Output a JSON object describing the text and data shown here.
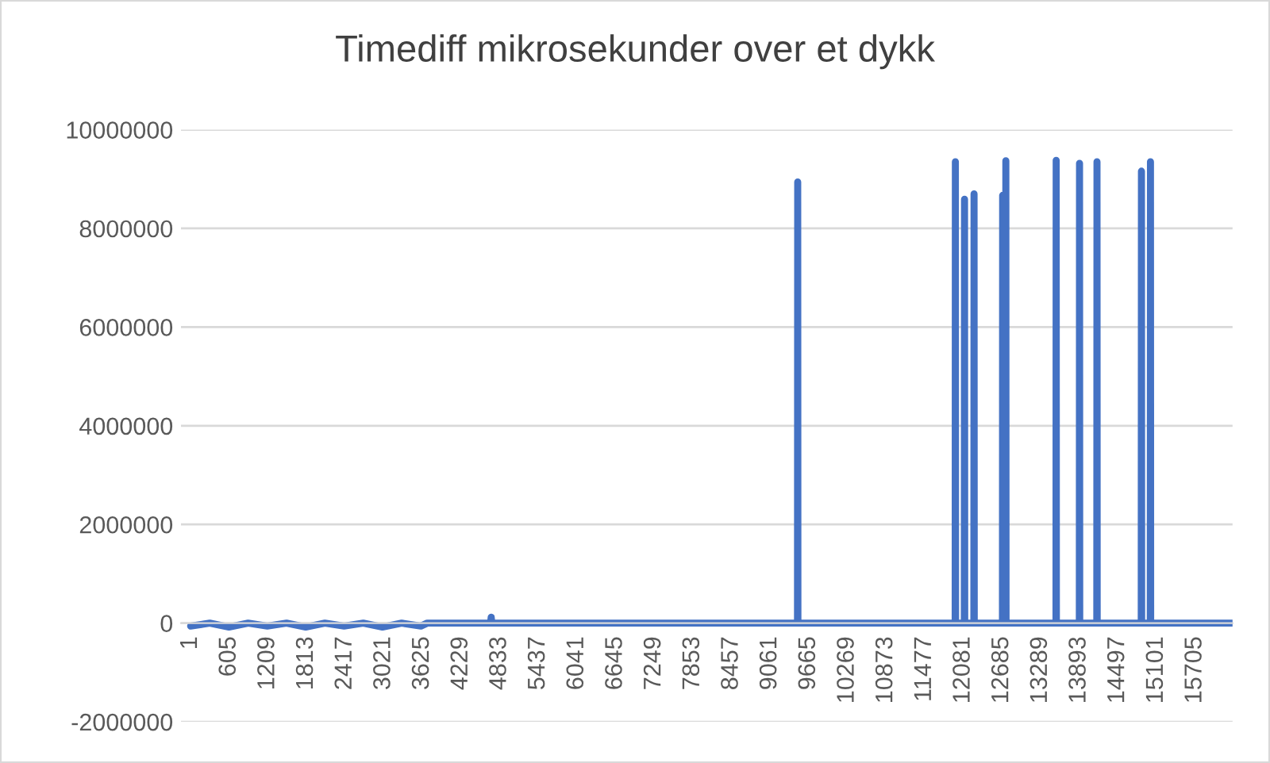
{
  "chart_data": {
    "type": "line",
    "title": "Timediff mikrosekunder over et dykk",
    "x": [
      1,
      300,
      600,
      900,
      1200,
      1500,
      1800,
      2100,
      2400,
      2700,
      3000,
      3300,
      3600,
      3700,
      4690,
      4700,
      4710,
      9489,
      9492,
      9495,
      11954,
      11957,
      11960,
      12097,
      12100,
      12103,
      12246,
      12249,
      12252,
      12693,
      12696,
      12699,
      12743,
      12746,
      12749,
      13530,
      13533,
      13536,
      13895,
      13898,
      13901,
      14168,
      14171,
      14174,
      14863,
      14866,
      14869,
      15004,
      15007,
      15010,
      16290
    ],
    "series": [
      {
        "color": "#4472c4",
        "values": [
          -60000,
          0,
          -80000,
          0,
          -60000,
          0,
          -80000,
          0,
          -60000,
          0,
          -80000,
          0,
          -60000,
          0,
          0,
          120000,
          0,
          0,
          8940000,
          0,
          0,
          9350000,
          0,
          0,
          8590000,
          0,
          0,
          8700000,
          0,
          0,
          8670000,
          0,
          0,
          9370000,
          0,
          0,
          9380000,
          0,
          0,
          9320000,
          0,
          0,
          9350000,
          0,
          0,
          9160000,
          0,
          0,
          9350000,
          0,
          0
        ]
      }
    ],
    "xlim": [
      -150,
      16290
    ],
    "xticks": [
      1,
      605,
      1209,
      1813,
      2417,
      3021,
      3625,
      4229,
      4833,
      5437,
      6041,
      6645,
      7249,
      7853,
      8457,
      9061,
      9665,
      10269,
      10873,
      11477,
      12081,
      12685,
      13289,
      13893,
      14497,
      15101,
      15705
    ],
    "ylim": [
      -2000000,
      10000000
    ],
    "yticks": [
      -2000000,
      0,
      2000000,
      4000000,
      6000000,
      8000000,
      10000000
    ],
    "grid": "y",
    "legend": false,
    "marker": "none",
    "line_style": "solid"
  }
}
